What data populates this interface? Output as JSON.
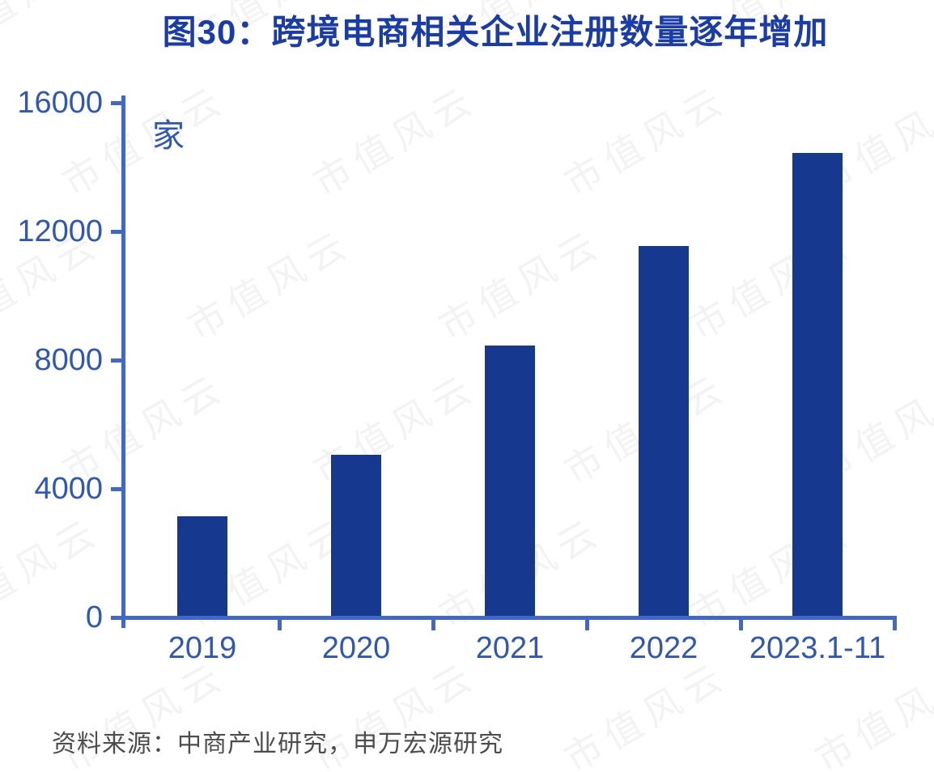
{
  "title": "图30：跨境电商相关企业注册数量逐年增加",
  "source": "资料来源：中商产业研究，申万宏源研究",
  "watermark": {
    "text": "市值风云"
  },
  "colors": {
    "background": "#ffffff",
    "title": "#1a3ca8",
    "tick_label": "#2e57b8",
    "axis": "#4068c8",
    "bar": "#16398f",
    "source_text": "#4d4d4d",
    "watermark": "#f3f3f3"
  },
  "chart_data": {
    "type": "bar",
    "title": "图30：跨境电商相关企业注册数量逐年增加",
    "unit_label": "家",
    "categories": [
      "2019",
      "2020",
      "2021",
      "2022",
      "2023.1-11"
    ],
    "values": [
      3100,
      5000,
      8400,
      11500,
      14400
    ],
    "xlabel": "",
    "ylabel": "家",
    "ylim": [
      0,
      16000
    ],
    "yticks": [
      0,
      4000,
      8000,
      12000,
      16000
    ],
    "grid": false,
    "legend_position": "none"
  }
}
